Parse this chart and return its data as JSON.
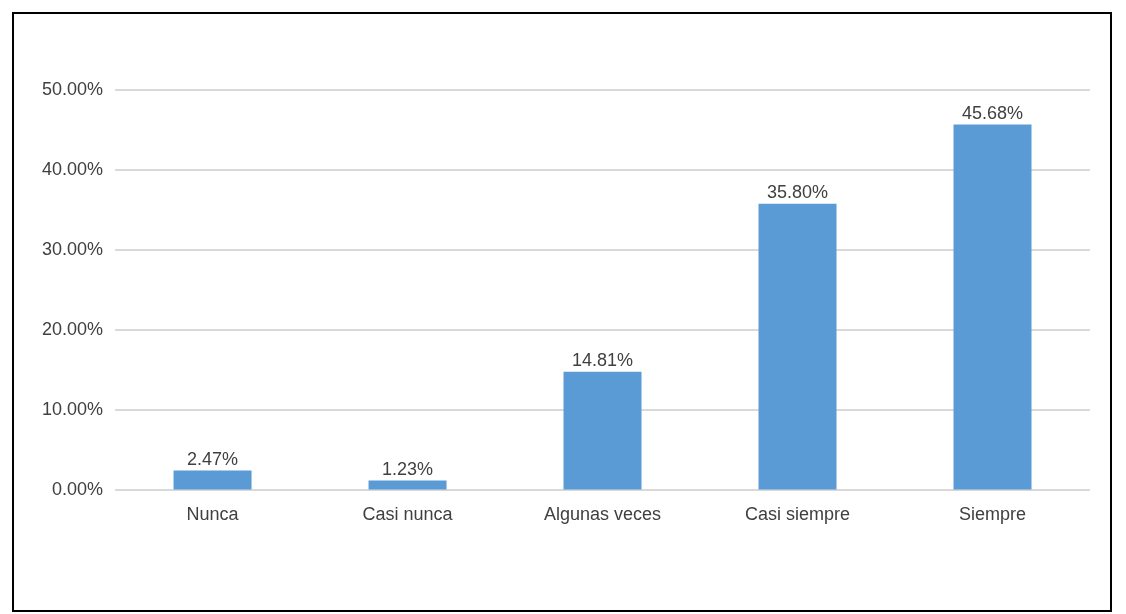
{
  "chart_data": {
    "type": "bar",
    "categories": [
      "Nunca",
      "Casi nunca",
      "Algunas veces",
      "Casi siempre",
      "Siempre"
    ],
    "values": [
      2.47,
      1.23,
      14.81,
      35.8,
      45.68
    ],
    "value_labels": [
      "2.47%",
      "1.23%",
      "14.81%",
      "35.80%",
      "45.68%"
    ],
    "color": "#5b9bd5",
    "ylim": [
      0,
      50
    ],
    "yticks": [
      {
        "value": 0,
        "label": "0.00%"
      },
      {
        "value": 10,
        "label": "10.00%"
      },
      {
        "value": 20,
        "label": "20.00%"
      },
      {
        "value": 30,
        "label": "30.00%"
      },
      {
        "value": 40,
        "label": "40.00%"
      },
      {
        "value": 50,
        "label": "50.00%"
      }
    ],
    "grid": "y"
  }
}
